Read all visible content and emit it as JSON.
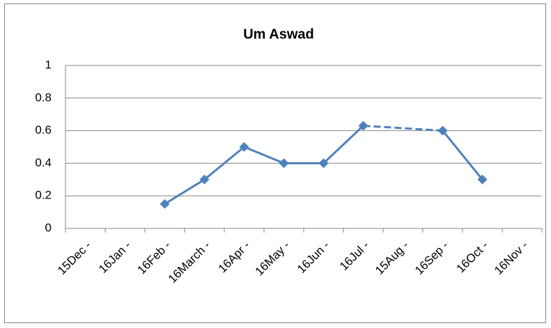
{
  "chart_data": {
    "type": "line",
    "title": "Um Aswad",
    "categories": [
      "15Dec -",
      "16Jan -",
      "16Feb -",
      "16March -",
      "16Apr -",
      "16May -",
      "16Jun -",
      "16Jul -",
      "15Aug -",
      "16Sep -",
      "16Oct -",
      "16Nov -"
    ],
    "series": [
      {
        "name": "Um Aswad",
        "color": "#4f81bd",
        "values": [
          null,
          null,
          0.15,
          0.3,
          0.5,
          0.4,
          0.4,
          0.63,
          null,
          0.6,
          0.3,
          null
        ]
      }
    ],
    "ylim": [
      0,
      1
    ],
    "yticks": [
      0,
      {
        "value": 0.2,
        "label": "0.2"
      },
      {
        "value": 0.4,
        "label": "0.4"
      },
      {
        "value": 0.6,
        "label": "0.6"
      },
      {
        "value": 0.8,
        "label": "0.8"
      },
      1
    ],
    "grid": true,
    "gap_line": "dashed"
  }
}
